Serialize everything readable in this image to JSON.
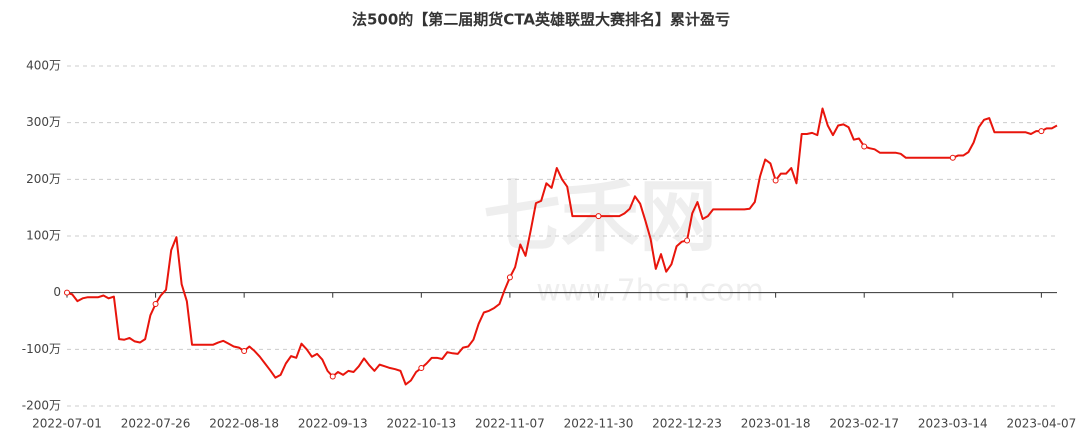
{
  "chart_data": {
    "type": "line",
    "title": "法500的【第二届期货CTA英雄联盟大赛排名】累计盈亏",
    "watermark": "七禾网",
    "watermark_url": "www.7hcn.com",
    "color": "#e8150c",
    "grid": true,
    "ylim": [
      -200,
      400
    ],
    "yticks": [
      {
        "value": -200,
        "label": "-200万"
      },
      {
        "value": -100,
        "label": "-100万"
      },
      0,
      {
        "value": 100,
        "label": "100万"
      },
      {
        "value": 200,
        "label": "200万"
      },
      {
        "value": 300,
        "label": "300万"
      },
      {
        "value": 400,
        "label": "400万"
      }
    ],
    "categories": [
      "2022-07-01",
      null,
      null,
      null,
      null,
      null,
      null,
      null,
      null,
      null,
      null,
      null,
      null,
      null,
      null,
      null,
      null,
      "2022-07-26",
      null,
      null,
      null,
      null,
      null,
      null,
      null,
      null,
      null,
      null,
      null,
      null,
      null,
      null,
      null,
      null,
      "2022-08-18",
      null,
      null,
      null,
      null,
      null,
      null,
      null,
      null,
      null,
      null,
      null,
      null,
      null,
      null,
      null,
      null,
      "2022-09-13",
      null,
      null,
      null,
      null,
      null,
      null,
      null,
      null,
      null,
      null,
      null,
      null,
      null,
      null,
      null,
      null,
      "2022-10-13",
      null,
      null,
      null,
      null,
      null,
      null,
      null,
      null,
      null,
      null,
      null,
      null,
      null,
      null,
      null,
      null,
      "2022-11-07",
      null,
      null,
      null,
      null,
      null,
      null,
      null,
      null,
      null,
      null,
      null,
      null,
      null,
      null,
      null,
      null,
      "2022-11-30",
      null,
      null,
      null,
      null,
      null,
      null,
      null,
      null,
      null,
      null,
      null,
      null,
      null,
      null,
      null,
      null,
      "2022-12-23",
      null,
      null,
      null,
      null,
      null,
      null,
      null,
      null,
      null,
      null,
      null,
      null,
      null,
      null,
      null,
      null,
      "2023-01-18",
      null,
      null,
      null,
      null,
      null,
      null,
      null,
      null,
      null,
      null,
      null,
      null,
      null,
      null,
      null,
      null,
      "2023-02-17",
      null,
      null,
      null,
      null,
      null,
      null,
      null,
      null,
      null,
      null,
      null,
      null,
      null,
      null,
      null,
      null,
      "2023-03-14",
      null,
      null,
      null,
      null,
      null,
      null,
      null,
      null,
      null,
      null,
      null,
      null,
      null,
      null,
      null,
      null,
      "2023-04-07",
      null,
      null,
      null
    ],
    "values": [
      0,
      -3,
      -15,
      -10,
      -8,
      -8,
      -8,
      -5,
      -10,
      -7,
      -82,
      -83,
      -80,
      -86,
      -88,
      -82,
      -40,
      -20,
      -5,
      5,
      75,
      98,
      15,
      -15,
      -92,
      -92,
      -92,
      -92,
      -92,
      -88,
      -85,
      -90,
      -95,
      -97,
      -103,
      -95,
      -103,
      -113,
      -125,
      -137,
      -150,
      -145,
      -125,
      -112,
      -115,
      -90,
      -100,
      -113,
      -108,
      -118,
      -138,
      -148,
      -140,
      -145,
      -138,
      -140,
      -130,
      -116,
      -128,
      -138,
      -127,
      -130,
      -133,
      -135,
      -138,
      -162,
      -155,
      -140,
      -133,
      -125,
      -115,
      -115,
      -117,
      -105,
      -107,
      -108,
      -97,
      -95,
      -83,
      -55,
      -35,
      -32,
      -27,
      -20,
      5,
      27,
      45,
      85,
      65,
      110,
      158,
      162,
      193,
      185,
      220,
      200,
      187,
      135,
      135,
      135,
      135,
      135,
      135,
      135,
      135,
      135,
      135,
      140,
      148,
      170,
      157,
      127,
      95,
      42,
      68,
      37,
      50,
      82,
      90,
      92,
      140,
      160,
      130,
      135,
      147,
      147,
      147,
      147,
      147,
      147,
      147,
      148,
      160,
      205,
      235,
      228,
      198,
      210,
      210,
      220,
      193,
      280,
      280,
      282,
      278,
      325,
      295,
      278,
      295,
      297,
      292,
      270,
      272,
      258,
      255,
      253,
      247,
      247,
      247,
      247,
      245,
      238,
      238,
      238,
      238,
      238,
      238,
      238,
      238,
      238,
      238,
      242,
      242,
      248,
      265,
      292,
      305,
      308,
      283,
      283,
      283,
      283,
      283,
      283,
      283,
      280,
      285,
      285,
      290,
      290,
      295
    ]
  }
}
